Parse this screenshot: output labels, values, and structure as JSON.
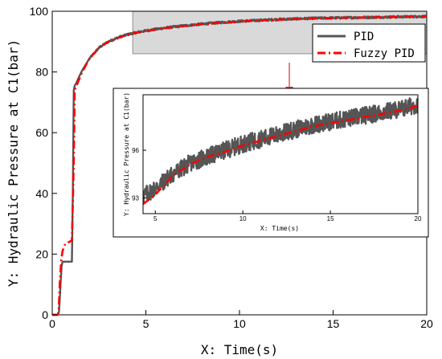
{
  "chart_data": [
    {
      "id": "main",
      "type": "line",
      "xlabel": "X: Time(s)",
      "ylabel": "Y: Hydraulic Pressure at C1(bar)",
      "xlim": [
        0,
        20
      ],
      "ylim": [
        0,
        100
      ],
      "xticks": [
        0,
        5,
        10,
        15,
        20
      ],
      "yticks": [
        0,
        20,
        40,
        60,
        80,
        100
      ],
      "grid": false,
      "legend_position": "top-right",
      "series": [
        {
          "name": "PID",
          "color": "#555555",
          "style": "solid-noisy",
          "x": [
            0.0,
            0.3,
            0.36,
            0.4,
            0.46,
            0.5,
            0.55,
            1.0,
            1.05,
            1.1,
            1.15,
            1.2,
            1.3,
            1.4,
            1.6,
            2.0,
            2.5,
            3.0,
            3.5,
            4.0,
            4.5,
            5.0,
            6.0,
            7.0,
            8.0,
            9.0,
            10.0,
            11.0,
            12.0,
            13.0,
            14.0,
            15.0,
            16.0,
            17.0,
            18.0,
            19.0,
            20.0
          ],
          "y": [
            0.0,
            0.0,
            1.0,
            5.0,
            12.0,
            16.0,
            17.5,
            17.5,
            17.5,
            40.0,
            74.0,
            75.5,
            76.5,
            78.0,
            80.5,
            84.5,
            88.0,
            90.0,
            91.3,
            92.3,
            93.0,
            93.6,
            94.5,
            95.2,
            95.8,
            96.3,
            96.7,
            97.0,
            97.3,
            97.5,
            97.7,
            97.8,
            97.9,
            98.0,
            98.1,
            98.2,
            98.3
          ]
        },
        {
          "name": "Fuzzy PID",
          "color": "#ff0000",
          "style": "dash-dot",
          "x": [
            0.0,
            0.3,
            0.35,
            0.4,
            0.48,
            0.55,
            0.7,
            0.9,
            1.05,
            1.15,
            1.2,
            1.3,
            1.4,
            1.6,
            2.0,
            2.5,
            3.0,
            3.5,
            4.0,
            4.5,
            5.0,
            6.0,
            7.0,
            8.0,
            9.0,
            10.0,
            11.0,
            12.0,
            13.0,
            14.0,
            15.0,
            16.0,
            17.0,
            18.0,
            19.0,
            20.0
          ],
          "y": [
            0.0,
            0.0,
            2.0,
            10.0,
            18.0,
            21.0,
            23.5,
            24.0,
            24.5,
            50.0,
            74.0,
            75.5,
            77.0,
            80.0,
            84.5,
            88.0,
            90.0,
            91.2,
            92.2,
            92.9,
            93.5,
            94.4,
            95.1,
            95.7,
            96.2,
            96.6,
            96.9,
            97.2,
            97.4,
            97.6,
            97.8,
            97.9,
            98.0,
            98.1,
            98.2,
            98.3
          ]
        }
      ]
    },
    {
      "id": "inset",
      "type": "line",
      "xlabel": "X: Time(s)",
      "ylabel": "Y: Hydraulic Pressure at C1(bar)",
      "xlim": [
        4.3,
        20
      ],
      "ylim": [
        92,
        99.5
      ],
      "xticks": [
        5,
        10,
        15,
        20
      ],
      "yticks": [
        93,
        96
      ],
      "grid": false,
      "series": [
        {
          "name": "PID",
          "color": "#555555",
          "style": "solid-noisy",
          "x": [
            4.3,
            5,
            6,
            7,
            8,
            9,
            10,
            11,
            12,
            13,
            14,
            15,
            16,
            17,
            18,
            19,
            20
          ],
          "y": [
            93.1,
            93.6,
            94.5,
            95.2,
            95.6,
            96.0,
            96.4,
            96.7,
            97.0,
            97.3,
            97.6,
            97.8,
            98.0,
            98.2,
            98.4,
            98.6,
            98.9
          ]
        },
        {
          "name": "Fuzzy PID",
          "color": "#ff0000",
          "style": "dash-dot",
          "x": [
            4.3,
            5,
            6,
            7,
            8,
            9,
            10,
            11,
            12,
            13,
            14,
            15,
            16,
            17,
            18,
            19,
            20
          ],
          "y": [
            92.6,
            93.2,
            94.4,
            95.1,
            95.6,
            95.9,
            96.3,
            96.6,
            96.9,
            97.2,
            97.5,
            97.7,
            97.9,
            98.1,
            98.3,
            98.5,
            98.8
          ]
        }
      ]
    }
  ],
  "zoom_region": {
    "x": [
      4.3,
      20
    ],
    "y": [
      86,
      100
    ],
    "fill": "#d9d9d9",
    "border": "#909090"
  },
  "arrow_color": "#e03030"
}
